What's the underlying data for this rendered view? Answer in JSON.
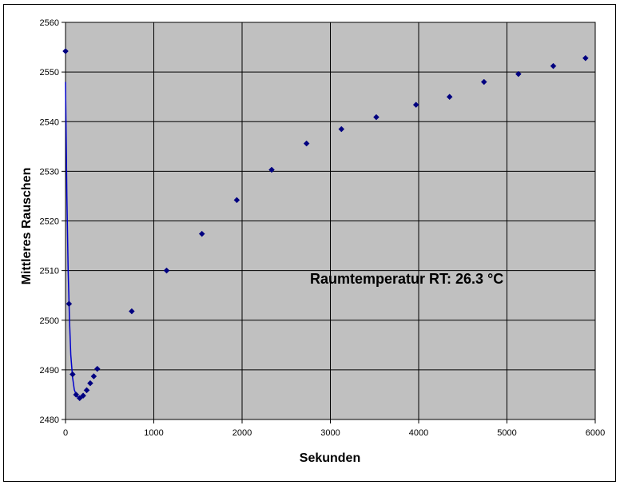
{
  "chart_data": {
    "type": "scatter",
    "title": "",
    "xlabel": "Sekunden",
    "ylabel": "Mittleres Rauschen",
    "xlim": [
      0,
      6000
    ],
    "ylim": [
      2480,
      2560
    ],
    "xticks": [
      0,
      1000,
      2000,
      3000,
      4000,
      5000,
      6000
    ],
    "yticks": [
      2480,
      2490,
      2500,
      2510,
      2520,
      2530,
      2540,
      2550,
      2560
    ],
    "grid": true,
    "legend": "none",
    "annotation": "Raumtemperatur RT: 26.3 °C",
    "colors": {
      "plot_background": "#c0c0c0",
      "marker": "#000080",
      "line": "#0000cc",
      "grid": "#000000"
    },
    "series": [
      {
        "marker": "diamond",
        "points": [
          {
            "x": 0,
            "y": 2554.2
          },
          {
            "x": 40,
            "y": 2503.3
          },
          {
            "x": 80,
            "y": 2489.1
          },
          {
            "x": 120,
            "y": 2485.0
          },
          {
            "x": 160,
            "y": 2484.3
          },
          {
            "x": 200,
            "y": 2484.8
          },
          {
            "x": 240,
            "y": 2485.9
          },
          {
            "x": 280,
            "y": 2487.3
          },
          {
            "x": 320,
            "y": 2488.7
          },
          {
            "x": 360,
            "y": 2490.2
          },
          {
            "x": 750,
            "y": 2501.8
          },
          {
            "x": 1145,
            "y": 2510.0
          },
          {
            "x": 1545,
            "y": 2517.4
          },
          {
            "x": 1940,
            "y": 2524.2
          },
          {
            "x": 2335,
            "y": 2530.3
          },
          {
            "x": 2730,
            "y": 2535.6
          },
          {
            "x": 3125,
            "y": 2538.5
          },
          {
            "x": 3520,
            "y": 2540.9
          },
          {
            "x": 3970,
            "y": 2543.4
          },
          {
            "x": 4350,
            "y": 2545.0
          },
          {
            "x": 4740,
            "y": 2548.0
          },
          {
            "x": 5130,
            "y": 2549.6
          },
          {
            "x": 5525,
            "y": 2551.2
          },
          {
            "x": 5890,
            "y": 2552.8
          }
        ]
      }
    ],
    "trend_curve": [
      {
        "x": 0,
        "y": 2548.0
      },
      {
        "x": 15,
        "y": 2525.0
      },
      {
        "x": 30,
        "y": 2510.0
      },
      {
        "x": 45,
        "y": 2500.0
      },
      {
        "x": 60,
        "y": 2493.0
      },
      {
        "x": 80,
        "y": 2488.5
      },
      {
        "x": 100,
        "y": 2486.0
      },
      {
        "x": 120,
        "y": 2485.0
      },
      {
        "x": 145,
        "y": 2484.4
      },
      {
        "x": 165,
        "y": 2484.3
      }
    ]
  }
}
